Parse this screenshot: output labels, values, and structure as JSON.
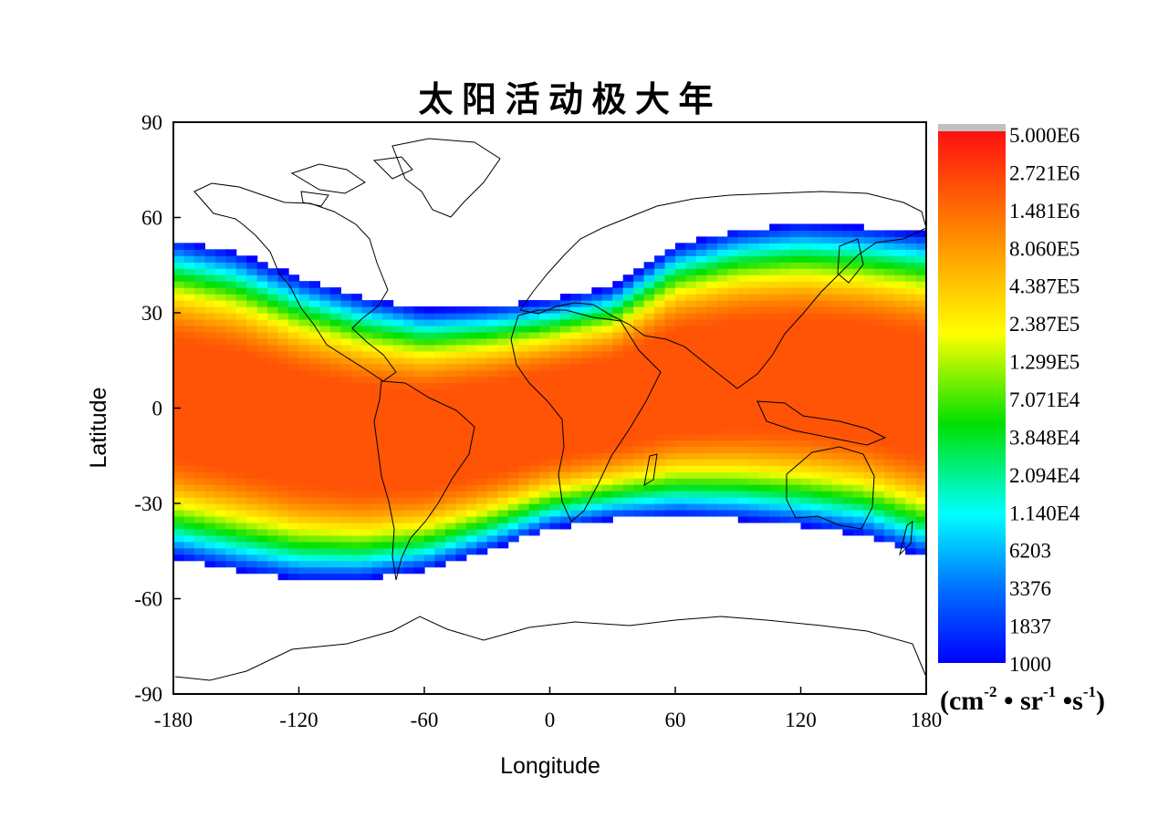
{
  "chart_data": {
    "type": "heatmap",
    "title": "太 阳 活 动 极 大 年",
    "xlabel": "Longitude",
    "ylabel": "Latitude",
    "xlim": [
      -180,
      180
    ],
    "ylim": [
      -90,
      90
    ],
    "x_ticks": [
      "-180",
      "-120",
      "-60",
      "0",
      "60",
      "120",
      "180"
    ],
    "y_ticks": [
      "90",
      "60",
      "30",
      "0",
      "-30",
      "-60",
      "-90"
    ],
    "x_tick_values": [
      -180,
      -120,
      -60,
      0,
      60,
      120,
      180
    ],
    "y_tick_values": [
      90,
      60,
      30,
      0,
      -30,
      -60,
      -90
    ],
    "grid": false,
    "colorbar": {
      "scale": "log",
      "min": 1000,
      "max": 5000000,
      "labels": [
        "5.000E6",
        "2.721E6",
        "1.481E6",
        "8.060E5",
        "4.387E5",
        "2.387E5",
        "1.299E5",
        "7.071E4",
        "3.848E4",
        "2.094E4",
        "1.140E4",
        "6203",
        "3376",
        "1837",
        "1000"
      ],
      "values": [
        5000000,
        2721000,
        1481000,
        806000,
        438700,
        238700,
        129900,
        70710,
        38480,
        20940,
        11400,
        6203,
        3376,
        1837,
        1000
      ],
      "overflow_color": "#c0c0c0",
      "colors": [
        "#0000ff",
        "#0080ff",
        "#00ffff",
        "#00ff00",
        "#ffff00",
        "#ff8000",
        "#ff0000"
      ]
    },
    "unit": {
      "prefix": "(cm",
      "exp1": "-2",
      "mid1": " • sr",
      "exp2": "-1",
      "mid2": " •s",
      "exp3": "-1",
      "suffix": ")"
    },
    "band": {
      "description_free": true,
      "longitudes": [
        -180,
        -150,
        -120,
        -90,
        -60,
        -30,
        0,
        30,
        60,
        90,
        120,
        150,
        180
      ],
      "north_edge_lat": [
        53,
        49,
        41,
        35,
        31,
        32,
        34,
        38,
        51,
        56,
        58,
        57,
        55
      ],
      "south_edge_lat": [
        -47,
        -51,
        -54,
        -54,
        -51,
        -45,
        -38,
        -35,
        -34,
        -35,
        -37,
        -40,
        -47
      ],
      "peak_flux": 2000000
    }
  }
}
